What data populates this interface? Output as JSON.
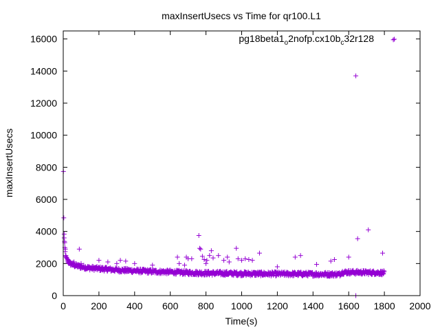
{
  "chart_data": {
    "type": "scatter",
    "title": "maxInsertUsecs vs Time for qr100.L1",
    "xlabel": "Time(s)",
    "ylabel": "maxInsertUsecs",
    "xlim": [
      0,
      2000
    ],
    "ylim": [
      0,
      16500
    ],
    "xticks": [
      0,
      200,
      400,
      600,
      800,
      1000,
      1200,
      1400,
      1600,
      1800,
      2000
    ],
    "yticks": [
      0,
      2000,
      4000,
      6000,
      8000,
      10000,
      12000,
      14000,
      16000
    ],
    "grid": false,
    "legend": {
      "position": "top-right",
      "label_parts": [
        "pg18beta1",
        "o",
        "2nofp.cx10b",
        "c",
        "32r128"
      ]
    },
    "marker": "+",
    "color": "#9400d3",
    "series": [
      {
        "name": "pg18beta1_o2nofp.cx10b_c32r128",
        "baseline": [
          [
            1,
            7700
          ],
          [
            2,
            5500
          ],
          [
            3,
            4900
          ],
          [
            4,
            4300
          ],
          [
            5,
            3800
          ],
          [
            6,
            3400
          ],
          [
            8,
            3100
          ],
          [
            10,
            2800
          ],
          [
            12,
            2600
          ],
          [
            15,
            2400
          ],
          [
            20,
            2250
          ],
          [
            30,
            2100
          ],
          [
            40,
            2000
          ],
          [
            60,
            1900
          ],
          [
            100,
            1800
          ],
          [
            150,
            1720
          ],
          [
            200,
            1680
          ],
          [
            300,
            1600
          ],
          [
            400,
            1550
          ],
          [
            500,
            1500
          ],
          [
            600,
            1470
          ],
          [
            700,
            1430
          ],
          [
            800,
            1400
          ],
          [
            900,
            1390
          ],
          [
            1000,
            1370
          ],
          [
            1100,
            1360
          ],
          [
            1200,
            1350
          ],
          [
            1300,
            1350
          ],
          [
            1400,
            1340
          ],
          [
            1500,
            1330
          ],
          [
            1550,
            1330
          ],
          [
            1560,
            1450
          ],
          [
            1600,
            1460
          ],
          [
            1700,
            1440
          ],
          [
            1800,
            1420
          ]
        ],
        "outliers": [
          [
            5,
            3600
          ],
          [
            8,
            3300
          ],
          [
            12,
            2900
          ],
          [
            30,
            2200
          ],
          [
            60,
            2100
          ],
          [
            90,
            2900
          ],
          [
            100,
            2000
          ],
          [
            200,
            2200
          ],
          [
            250,
            2100
          ],
          [
            300,
            2000
          ],
          [
            320,
            2200
          ],
          [
            350,
            2150
          ],
          [
            400,
            2000
          ],
          [
            500,
            1900
          ],
          [
            640,
            2400
          ],
          [
            650,
            2000
          ],
          [
            680,
            1900
          ],
          [
            690,
            2400
          ],
          [
            700,
            2300
          ],
          [
            720,
            2300
          ],
          [
            760,
            3750
          ],
          [
            765,
            2950
          ],
          [
            770,
            2900
          ],
          [
            780,
            2450
          ],
          [
            790,
            2250
          ],
          [
            800,
            2000
          ],
          [
            805,
            2200
          ],
          [
            820,
            2500
          ],
          [
            830,
            2800
          ],
          [
            840,
            2350
          ],
          [
            870,
            2500
          ],
          [
            900,
            2200
          ],
          [
            920,
            2400
          ],
          [
            930,
            2100
          ],
          [
            970,
            2950
          ],
          [
            980,
            2300
          ],
          [
            1000,
            2200
          ],
          [
            1020,
            2300
          ],
          [
            1040,
            2250
          ],
          [
            1060,
            2200
          ],
          [
            1100,
            2650
          ],
          [
            1200,
            1800
          ],
          [
            1300,
            2400
          ],
          [
            1330,
            2500
          ],
          [
            1420,
            1950
          ],
          [
            1500,
            2150
          ],
          [
            1520,
            2250
          ],
          [
            1600,
            2400
          ],
          [
            1640,
            13700
          ],
          [
            1640,
            0
          ],
          [
            1650,
            3550
          ],
          [
            1710,
            4100
          ],
          [
            1790,
            2650
          ],
          [
            1850,
            15950
          ]
        ]
      }
    ]
  }
}
